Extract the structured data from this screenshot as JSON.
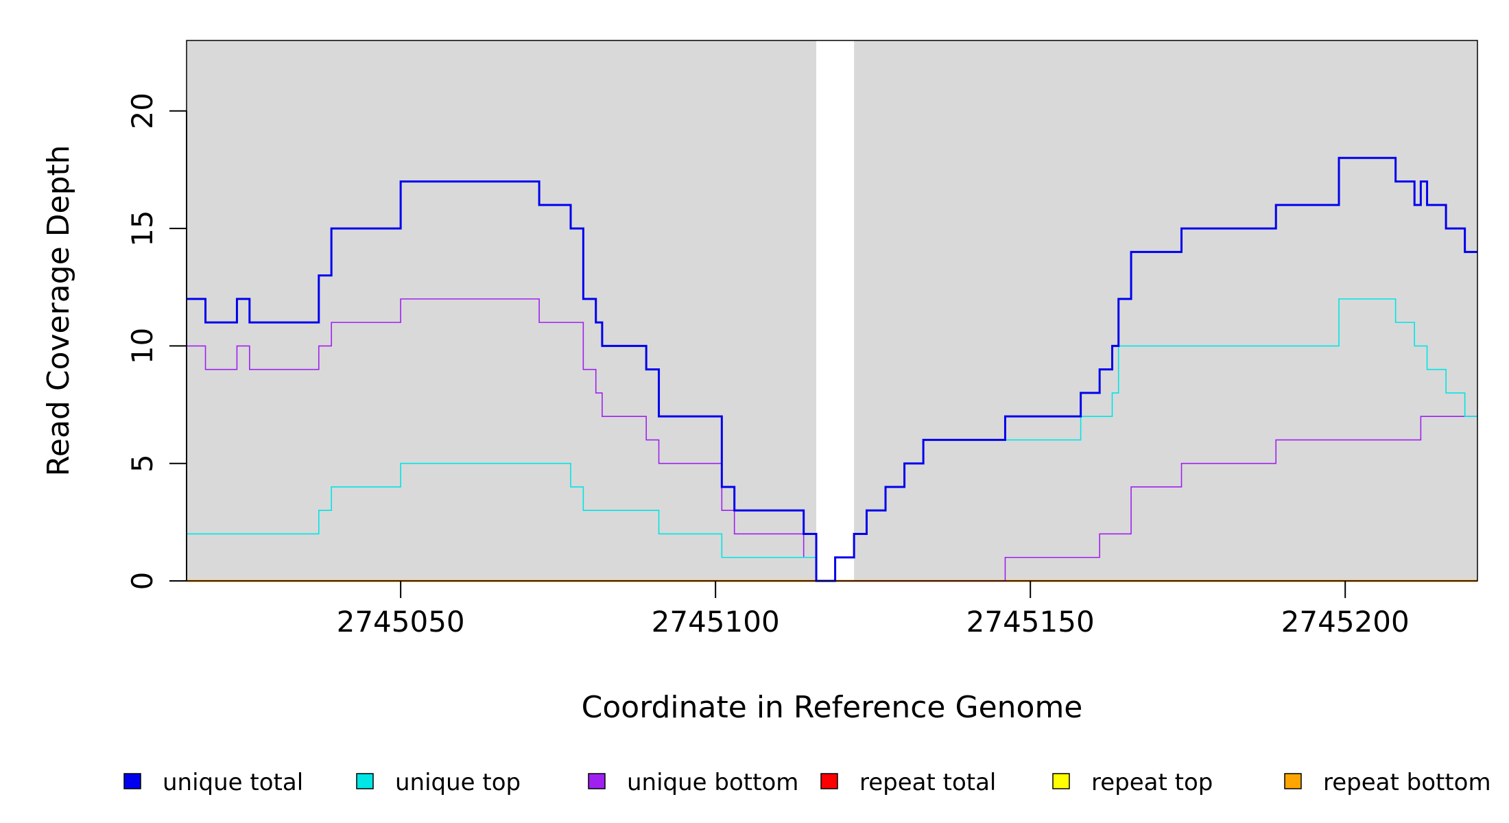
{
  "chart_data": {
    "type": "line",
    "step": true,
    "xlabel": "Coordinate in Reference Genome",
    "ylabel": "Read Coverage Depth",
    "xlim": [
      2745016,
      2745221
    ],
    "ylim": [
      0,
      23
    ],
    "x_ticks": [
      2745050,
      2745100,
      2745150,
      2745200
    ],
    "x_tick_labels": [
      "2745050",
      "2745100",
      "2745150",
      "2745200"
    ],
    "y_ticks": [
      0,
      5,
      10,
      15,
      20
    ],
    "y_tick_labels": [
      "0",
      "5",
      "10",
      "15",
      "20"
    ],
    "background_color": "#d9d9d9",
    "gap_region": [
      2745116,
      2745122
    ],
    "legend_placement": "bottom",
    "series": [
      {
        "name": "unique total",
        "color": "#0000ee",
        "width": 3,
        "points": [
          [
            2745016,
            12
          ],
          [
            2745019,
            11
          ],
          [
            2745024,
            12
          ],
          [
            2745026,
            11
          ],
          [
            2745037,
            13
          ],
          [
            2745039,
            15
          ],
          [
            2745050,
            17
          ],
          [
            2745072,
            16
          ],
          [
            2745077,
            15
          ],
          [
            2745079,
            12
          ],
          [
            2745081,
            11
          ],
          [
            2745082,
            10
          ],
          [
            2745089,
            9
          ],
          [
            2745091,
            7
          ],
          [
            2745101,
            4
          ],
          [
            2745103,
            3
          ],
          [
            2745114,
            2
          ],
          [
            2745116,
            0
          ],
          [
            2745119,
            1
          ],
          [
            2745122,
            2
          ],
          [
            2745124,
            3
          ],
          [
            2745127,
            4
          ],
          [
            2745130,
            5
          ],
          [
            2745133,
            6
          ],
          [
            2745146,
            7
          ],
          [
            2745158,
            8
          ],
          [
            2745161,
            9
          ],
          [
            2745163,
            10
          ],
          [
            2745164,
            12
          ],
          [
            2745166,
            14
          ],
          [
            2745174,
            15
          ],
          [
            2745189,
            16
          ],
          [
            2745199,
            18
          ],
          [
            2745208,
            17
          ],
          [
            2745211,
            16
          ],
          [
            2745212,
            17
          ],
          [
            2745213,
            16
          ],
          [
            2745216,
            15
          ],
          [
            2745219,
            14
          ],
          [
            2745221,
            14
          ]
        ]
      },
      {
        "name": "unique top",
        "color": "#00e5e5",
        "width": 1.6,
        "points": [
          [
            2745016,
            2
          ],
          [
            2745037,
            3
          ],
          [
            2745039,
            4
          ],
          [
            2745050,
            5
          ],
          [
            2745077,
            4
          ],
          [
            2745079,
            3
          ],
          [
            2745091,
            2
          ],
          [
            2745101,
            1
          ],
          [
            2745114,
            1
          ],
          [
            2745116,
            0
          ],
          [
            2745119,
            1
          ],
          [
            2745122,
            2
          ],
          [
            2745124,
            3
          ],
          [
            2745127,
            4
          ],
          [
            2745130,
            5
          ],
          [
            2745133,
            6
          ],
          [
            2745158,
            7
          ],
          [
            2745163,
            8
          ],
          [
            2745164,
            10
          ],
          [
            2745199,
            12
          ],
          [
            2745208,
            11
          ],
          [
            2745211,
            10
          ],
          [
            2745213,
            9
          ],
          [
            2745216,
            8
          ],
          [
            2745219,
            7
          ],
          [
            2745221,
            7
          ]
        ]
      },
      {
        "name": "unique bottom",
        "color": "#a020f0",
        "width": 1.6,
        "points": [
          [
            2745016,
            10
          ],
          [
            2745019,
            9
          ],
          [
            2745024,
            10
          ],
          [
            2745026,
            9
          ],
          [
            2745037,
            10
          ],
          [
            2745039,
            11
          ],
          [
            2745050,
            12
          ],
          [
            2745072,
            11
          ],
          [
            2745079,
            9
          ],
          [
            2745081,
            8
          ],
          [
            2745082,
            7
          ],
          [
            2745089,
            6
          ],
          [
            2745091,
            5
          ],
          [
            2745101,
            3
          ],
          [
            2745103,
            2
          ],
          [
            2745114,
            1
          ],
          [
            2745116,
            0
          ],
          [
            2745146,
            1
          ],
          [
            2745161,
            2
          ],
          [
            2745166,
            4
          ],
          [
            2745174,
            5
          ],
          [
            2745189,
            6
          ],
          [
            2745212,
            7
          ],
          [
            2745221,
            7
          ]
        ]
      },
      {
        "name": "repeat total",
        "color": "#ff0000",
        "width": 1.6,
        "points": [
          [
            2745016,
            0
          ],
          [
            2745221,
            0
          ]
        ]
      },
      {
        "name": "repeat top",
        "color": "#ffff00",
        "width": 1.6,
        "points": [
          [
            2745016,
            0
          ],
          [
            2745221,
            0
          ]
        ]
      },
      {
        "name": "repeat bottom",
        "color": "#ffa500",
        "width": 3,
        "points": [
          [
            2745016,
            0
          ],
          [
            2745221,
            0
          ]
        ]
      }
    ]
  }
}
